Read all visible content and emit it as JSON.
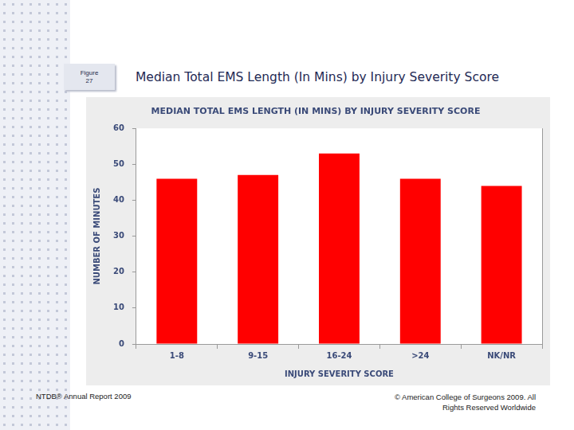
{
  "slide": {
    "figure_label": [
      "Figure",
      "27"
    ],
    "heading": "Median Total EMS Length (In Mins) by Injury Severity Score",
    "footer_left": "NTDB® Annual Report 2009",
    "footer_right": "© American College of Surgeons 2009.  All Rights Reserved Worldwide"
  },
  "chart_data": {
    "type": "bar",
    "title": "MEDIAN TOTAL EMS LENGTH (IN MINS) BY INJURY SEVERITY SCORE",
    "x_label": "INJURY SEVERITY SCORE",
    "y_label": "NUMBER OF MINUTES",
    "categories": [
      "1-8",
      "9-15",
      "16-24",
      ">24",
      "NK/NR"
    ],
    "values": [
      46,
      47,
      53,
      46,
      44
    ],
    "color": "#ff0000",
    "ylim": [
      0,
      60
    ],
    "yticks": [
      0,
      10,
      20,
      30,
      40,
      50,
      60
    ],
    "grid": false
  }
}
